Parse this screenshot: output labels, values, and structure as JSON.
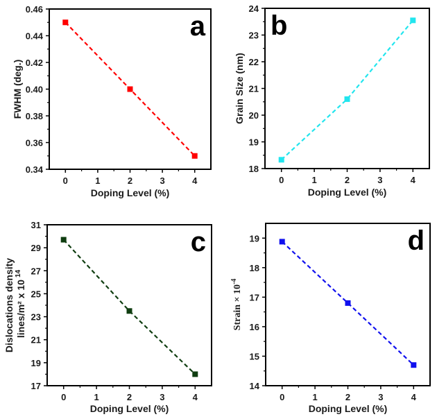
{
  "chart_data": [
    {
      "type": "line",
      "panel": "a",
      "title": "",
      "xlabel": "Doping Level (%)",
      "ylabel": "FWHM (deg.)",
      "x": [
        0,
        2,
        4
      ],
      "series": [
        {
          "name": "FWHM",
          "values": [
            0.45,
            0.4,
            0.35
          ],
          "color": "#ff0000"
        }
      ],
      "xlim": [
        -0.5,
        4.5
      ],
      "ylim": [
        0.34,
        0.46
      ],
      "xticks": [
        0,
        1,
        2,
        3,
        4
      ],
      "xtick_labels": [
        "0",
        "1",
        "2",
        "3",
        "4"
      ],
      "yticks": [
        0.34,
        0.36,
        0.38,
        0.4,
        0.42,
        0.44,
        0.46
      ],
      "ytick_labels": [
        "0.34",
        "0.36",
        "0.38",
        "0.40",
        "0.42",
        "0.44",
        "0.46"
      ],
      "grid": false,
      "line_style": "dashed",
      "marker": "square"
    },
    {
      "type": "line",
      "panel": "b",
      "title": "",
      "xlabel": "Doping Level (%)",
      "ylabel": "Grain Size (nm)",
      "x": [
        0,
        2,
        4
      ],
      "series": [
        {
          "name": "Grain Size",
          "values": [
            18.33,
            20.6,
            23.55
          ],
          "color": "#22e5ee"
        }
      ],
      "xlim": [
        -0.5,
        4.5
      ],
      "ylim": [
        18,
        24
      ],
      "xticks": [
        0,
        1,
        2,
        3,
        4
      ],
      "xtick_labels": [
        "0",
        "1",
        "2",
        "3",
        "4"
      ],
      "yticks": [
        18,
        19,
        20,
        21,
        22,
        23,
        24
      ],
      "ytick_labels": [
        "18",
        "19",
        "20",
        "21",
        "22",
        "23",
        "24"
      ],
      "grid": false,
      "line_style": "dashed",
      "marker": "square"
    },
    {
      "type": "line",
      "panel": "c",
      "title": "",
      "xlabel": "Doping Level (%)",
      "ylabel": "Dislocations density",
      "ylabel2": "lines/m² x 10",
      "ylabel2_sup": "14",
      "x": [
        0,
        2,
        4
      ],
      "series": [
        {
          "name": "Dislocations density",
          "values": [
            29.7,
            23.5,
            18.0
          ],
          "color": "#0f3d10"
        }
      ],
      "xlim": [
        -0.5,
        4.5
      ],
      "ylim": [
        17,
        31
      ],
      "xticks": [
        0,
        1,
        2,
        3,
        4
      ],
      "xtick_labels": [
        "0",
        "1",
        "2",
        "3",
        "4"
      ],
      "yticks": [
        17,
        19,
        21,
        23,
        25,
        27,
        29,
        31
      ],
      "ytick_labels": [
        "17",
        "19",
        "21",
        "23",
        "25",
        "27",
        "29",
        "31"
      ],
      "grid": false,
      "line_style": "dashed",
      "marker": "square"
    },
    {
      "type": "line",
      "panel": "d",
      "title": "",
      "xlabel": "Doping Level (%)",
      "ylabel": "Strain × 10",
      "ylabel_sup": "-4",
      "x": [
        0,
        2,
        4
      ],
      "series": [
        {
          "name": "Strain",
          "values": [
            18.88,
            16.8,
            14.7
          ],
          "color": "#1010ee"
        }
      ],
      "xlim": [
        -0.5,
        4.5
      ],
      "ylim": [
        14,
        19.5
      ],
      "xticks": [
        0,
        1,
        2,
        3,
        4
      ],
      "xtick_labels": [
        "0",
        "1",
        "2",
        "3",
        "4"
      ],
      "yticks": [
        14,
        15,
        16,
        17,
        18,
        19
      ],
      "ytick_labels": [
        "14",
        "15",
        "16",
        "17",
        "18",
        "19"
      ],
      "grid": false,
      "line_style": "dashed",
      "marker": "square"
    }
  ]
}
